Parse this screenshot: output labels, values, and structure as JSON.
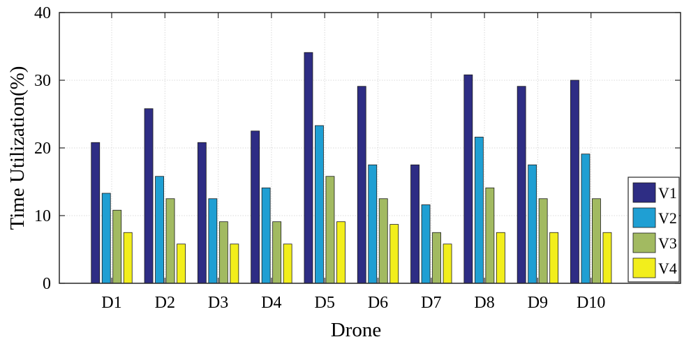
{
  "chart_data": {
    "type": "bar",
    "xlabel": "Drone",
    "ylabel": "Time Utilization(%)",
    "ylim": [
      0,
      40
    ],
    "yticks": [
      0,
      10,
      20,
      30,
      40
    ],
    "grid": true,
    "legend_position": "bottom-right",
    "categories": [
      "D1",
      "D2",
      "D3",
      "D4",
      "D5",
      "D6",
      "D7",
      "D8",
      "D9",
      "D10"
    ],
    "series": [
      {
        "name": "V1",
        "color": "#2e2d84",
        "values": [
          20.8,
          25.8,
          20.8,
          22.5,
          34.1,
          29.1,
          17.5,
          30.8,
          29.1,
          30.0
        ]
      },
      {
        "name": "V2",
        "color": "#1f9fd3",
        "values": [
          13.3,
          15.8,
          12.5,
          14.1,
          23.3,
          17.5,
          11.6,
          21.6,
          17.5,
          19.1
        ]
      },
      {
        "name": "V3",
        "color": "#a2ba61",
        "values": [
          10.8,
          12.5,
          9.1,
          9.1,
          15.8,
          12.5,
          7.5,
          14.1,
          12.5,
          12.5
        ]
      },
      {
        "name": "V4",
        "color": "#f2ee1c",
        "values": [
          7.5,
          5.8,
          5.8,
          5.8,
          9.1,
          8.7,
          5.8,
          7.5,
          7.5,
          7.5
        ]
      }
    ]
  }
}
